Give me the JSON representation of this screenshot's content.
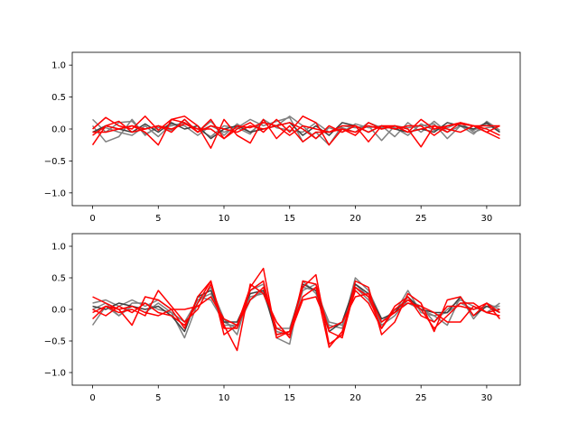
{
  "chart_data": [
    {
      "type": "line",
      "title": "",
      "xlabel": "",
      "ylabel": "",
      "xlim": [
        -1.55,
        32.55
      ],
      "ylim": [
        -1.2,
        1.2
      ],
      "xticks": [
        0,
        5,
        10,
        15,
        20,
        25,
        30
      ],
      "yticks": [
        -1.0,
        -0.5,
        0.0,
        0.5,
        1.0
      ],
      "ytick_labels": [
        "−1.0",
        "−0.5",
        "0.0",
        "0.5",
        "1.0"
      ],
      "grid": false,
      "x": [
        0,
        1,
        2,
        3,
        4,
        5,
        6,
        7,
        8,
        9,
        10,
        11,
        12,
        13,
        14,
        15,
        16,
        17,
        18,
        19,
        20,
        21,
        22,
        23,
        24,
        25,
        26,
        27,
        28,
        29,
        30,
        31
      ],
      "series": [
        {
          "color": "#808080",
          "values": [
            0.15,
            -0.05,
            0.1,
            0.12,
            -0.08,
            0.02,
            0.05,
            0.1,
            0.0,
            -0.12,
            0.05,
            0.02,
            0.15,
            0.05,
            0.12,
            0.18,
            -0.2,
            -0.05,
            -0.25,
            0.05,
            0.02,
            0.05,
            -0.18,
            0.05,
            0.02,
            0.05,
            0.08,
            -0.15,
            0.05,
            -0.02,
            0.08,
            -0.05
          ]
        },
        {
          "color": "#808080",
          "values": [
            0.05,
            -0.2,
            -0.12,
            0.15,
            -0.1,
            0.05,
            -0.02,
            0.15,
            -0.05,
            0.12,
            -0.1,
            0.08,
            -0.05,
            0.1,
            0.05,
            0.2,
            0.05,
            -0.15,
            0.02,
            -0.05,
            0.08,
            0.02,
            0.05,
            -0.12,
            0.1,
            -0.05,
            0.12,
            -0.05,
            0.05,
            -0.08,
            0.12,
            -0.02
          ]
        },
        {
          "color": "#808080",
          "values": [
            -0.05,
            0.02,
            -0.05,
            -0.1,
            0.05,
            -0.12,
            0.08,
            0.05,
            -0.1,
            0.05,
            -0.05,
            0.02,
            -0.08,
            0.15,
            0.02,
            -0.02,
            -0.05,
            0.1,
            -0.05,
            0.02,
            -0.05,
            0.1,
            0.02,
            0.02,
            -0.1,
            0.08,
            -0.02,
            0.02,
            0.1,
            -0.05,
            0.02,
            0.05
          ]
        },
        {
          "color": "#404040",
          "values": [
            -0.05,
            0.05,
            0.0,
            -0.05,
            0.08,
            -0.05,
            0.1,
            0.0,
            0.05,
            -0.15,
            0.0,
            0.05,
            -0.05,
            0.0,
            0.05,
            0.1,
            -0.1,
            0.05,
            -0.1,
            0.1,
            0.05,
            -0.05,
            0.05,
            0.0,
            -0.05,
            0.0,
            -0.05,
            0.1,
            0.05,
            0.0,
            0.1,
            -0.05
          ]
        },
        {
          "color": "#ff0000",
          "values": [
            -0.25,
            0.05,
            0.0,
            0.05,
            -0.05,
            -0.25,
            0.15,
            0.1,
            -0.05,
            0.15,
            -0.15,
            0.0,
            0.1,
            -0.05,
            0.15,
            -0.05,
            0.2,
            0.1,
            -0.25,
            0.0,
            -0.05,
            0.05,
            0.0,
            0.05,
            0.0,
            -0.28,
            0.05,
            -0.05,
            0.1,
            0.05,
            0.0,
            -0.1
          ]
        },
        {
          "color": "#ff0000",
          "values": [
            0.0,
            0.18,
            0.05,
            0.0,
            0.2,
            -0.02,
            0.15,
            0.2,
            0.05,
            -0.3,
            0.15,
            -0.1,
            -0.22,
            0.15,
            -0.15,
            0.05,
            -0.2,
            -0.05,
            -0.05,
            0.0,
            -0.1,
            0.1,
            0.0,
            0.05,
            -0.05,
            0.15,
            0.0,
            0.05,
            0.08,
            0.05,
            -0.05,
            -0.15
          ]
        },
        {
          "color": "#ff0000",
          "values": [
            -0.1,
            0.05,
            0.12,
            -0.05,
            0.0,
            0.05,
            0.0,
            0.08,
            0.0,
            0.0,
            -0.15,
            0.05,
            0.02,
            0.1,
            0.05,
            0.1,
            0.0,
            -0.15,
            0.05,
            -0.05,
            0.05,
            -0.2,
            0.05,
            0.0,
            0.05,
            0.05,
            -0.1,
            0.05,
            0.1,
            0.05,
            -0.05,
            0.05
          ]
        },
        {
          "color": "#ff0000",
          "values": [
            -0.05,
            -0.05,
            0.0,
            0.05,
            0.0,
            0.05,
            -0.05,
            0.15,
            -0.05,
            0.05,
            0.0,
            -0.05,
            0.05,
            0.0,
            0.05,
            -0.1,
            0.05,
            0.0,
            -0.05,
            0.05,
            0.05,
            -0.05,
            0.05,
            0.05,
            -0.05,
            0.0,
            0.05,
            0.0,
            -0.05,
            0.05,
            0.05,
            0.05
          ]
        }
      ]
    },
    {
      "type": "line",
      "title": "",
      "xlabel": "",
      "ylabel": "",
      "xlim": [
        -1.55,
        32.55
      ],
      "ylim": [
        -1.2,
        1.2
      ],
      "xticks": [
        0,
        5,
        10,
        15,
        20,
        25,
        30
      ],
      "yticks": [
        -1.0,
        -0.5,
        0.0,
        0.5,
        1.0
      ],
      "ytick_labels": [
        "−1.0",
        "−0.5",
        "0.0",
        "0.5",
        "1.0"
      ],
      "grid": false,
      "x": [
        0,
        1,
        2,
        3,
        4,
        5,
        6,
        7,
        8,
        9,
        10,
        11,
        12,
        13,
        14,
        15,
        16,
        17,
        18,
        19,
        20,
        21,
        22,
        23,
        24,
        25,
        26,
        27,
        28,
        29,
        30,
        31
      ],
      "series": [
        {
          "color": "#808080",
          "values": [
            -0.25,
            0.05,
            -0.1,
            0.05,
            -0.05,
            0.1,
            -0.05,
            -0.45,
            0.1,
            0.35,
            -0.15,
            -0.4,
            0.3,
            0.4,
            -0.45,
            -0.55,
            0.45,
            0.25,
            -0.25,
            -0.3,
            0.5,
            0.3,
            -0.15,
            -0.05,
            0.3,
            -0.05,
            -0.1,
            -0.25,
            0.2,
            -0.15,
            0.1,
            0.0
          ]
        },
        {
          "color": "#808080",
          "values": [
            0.1,
            0.15,
            0.05,
            0.15,
            0.05,
            0.15,
            0.0,
            -0.3,
            0.2,
            0.15,
            -0.2,
            -0.3,
            0.15,
            0.3,
            -0.35,
            -0.4,
            0.3,
            0.4,
            -0.3,
            -0.2,
            0.4,
            0.2,
            -0.25,
            -0.1,
            0.15,
            0.05,
            -0.2,
            0.0,
            0.15,
            0.05,
            -0.05,
            0.1
          ]
        },
        {
          "color": "#808080",
          "values": [
            0.0,
            0.1,
            -0.1,
            0.1,
            0.1,
            0.0,
            -0.05,
            -0.2,
            0.15,
            0.25,
            -0.25,
            -0.25,
            0.2,
            0.25,
            -0.3,
            -0.3,
            0.35,
            0.3,
            -0.2,
            -0.25,
            0.35,
            0.15,
            -0.2,
            0.0,
            0.1,
            0.0,
            -0.1,
            -0.05,
            0.1,
            0.0,
            0.05,
            0.05
          ]
        },
        {
          "color": "#404040",
          "values": [
            0.05,
            0.0,
            0.1,
            0.05,
            0.0,
            0.05,
            -0.1,
            -0.35,
            0.2,
            0.3,
            -0.2,
            -0.2,
            0.25,
            0.3,
            -0.4,
            -0.35,
            0.4,
            0.3,
            -0.35,
            -0.2,
            0.4,
            0.25,
            -0.15,
            -0.05,
            0.2,
            0.0,
            -0.05,
            -0.05,
            0.2,
            -0.1,
            0.05,
            -0.05
          ]
        },
        {
          "color": "#ff0000",
          "values": [
            0.2,
            0.1,
            0.0,
            -0.25,
            0.2,
            0.15,
            0.0,
            -0.3,
            0.2,
            0.45,
            -0.4,
            -0.25,
            0.35,
            0.65,
            -0.45,
            -0.35,
            0.35,
            0.55,
            -0.55,
            -0.4,
            0.45,
            0.35,
            -0.4,
            -0.2,
            0.25,
            0.1,
            -0.35,
            0.15,
            0.2,
            -0.1,
            0.1,
            -0.05
          ]
        },
        {
          "color": "#ff0000",
          "values": [
            -0.15,
            0.05,
            -0.05,
            0.0,
            -0.1,
            0.3,
            0.05,
            -0.2,
            0.0,
            0.4,
            -0.25,
            -0.65,
            0.4,
            0.25,
            -0.2,
            -0.45,
            0.45,
            0.4,
            -0.35,
            -0.45,
            0.35,
            0.2,
            -0.3,
            0.05,
            0.2,
            -0.1,
            -0.2,
            0.05,
            0.05,
            0.0,
            0.1,
            -0.15
          ]
        },
        {
          "color": "#ff0000",
          "values": [
            0.0,
            -0.1,
            0.05,
            -0.05,
            0.1,
            -0.05,
            -0.1,
            -0.25,
            0.1,
            0.45,
            -0.3,
            -0.3,
            0.3,
            0.45,
            -0.4,
            -0.35,
            0.2,
            0.35,
            -0.6,
            -0.35,
            0.3,
            0.1,
            -0.3,
            0.0,
            0.15,
            0.0,
            -0.3,
            -0.1,
            0.1,
            0.1,
            -0.05,
            -0.1
          ]
        },
        {
          "color": "#ff0000",
          "values": [
            -0.05,
            0.05,
            0.0,
            0.05,
            -0.05,
            -0.1,
            0.0,
            0.0,
            0.05,
            0.2,
            -0.15,
            -0.25,
            0.15,
            0.35,
            -0.3,
            -0.4,
            0.15,
            0.2,
            -0.3,
            -0.2,
            0.2,
            0.25,
            -0.2,
            -0.05,
            0.1,
            0.05,
            -0.05,
            -0.2,
            -0.2,
            0.05,
            -0.05,
            0.0
          ]
        }
      ]
    }
  ]
}
